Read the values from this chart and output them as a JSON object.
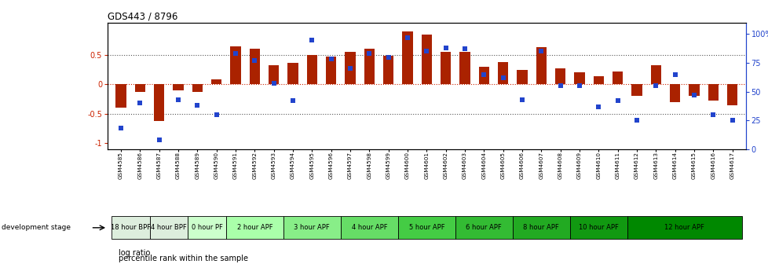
{
  "title": "GDS443 / 8796",
  "samples": [
    "GSM4585",
    "GSM4586",
    "GSM4587",
    "GSM4588",
    "GSM4589",
    "GSM4590",
    "GSM4591",
    "GSM4592",
    "GSM4593",
    "GSM4594",
    "GSM4595",
    "GSM4596",
    "GSM4597",
    "GSM4598",
    "GSM4599",
    "GSM4600",
    "GSM4601",
    "GSM4602",
    "GSM4603",
    "GSM4604",
    "GSM4605",
    "GSM4606",
    "GSM4607",
    "GSM4608",
    "GSM4609",
    "GSM4610",
    "GSM4611",
    "GSM4612",
    "GSM4613",
    "GSM4614",
    "GSM4615",
    "GSM4616",
    "GSM4617"
  ],
  "log_ratio": [
    -0.4,
    -0.13,
    -0.62,
    -0.1,
    -0.13,
    0.08,
    0.65,
    0.6,
    0.33,
    0.37,
    0.5,
    0.47,
    0.55,
    0.6,
    0.48,
    0.9,
    0.85,
    0.55,
    0.55,
    0.3,
    0.38,
    0.24,
    0.63,
    0.27,
    0.2,
    0.14,
    0.22,
    -0.2,
    0.33,
    -0.3,
    -0.2,
    -0.28,
    -0.35
  ],
  "percentile": [
    18,
    40,
    8,
    43,
    38,
    30,
    83,
    77,
    57,
    42,
    95,
    78,
    70,
    83,
    80,
    97,
    85,
    88,
    87,
    65,
    62,
    43,
    85,
    55,
    55,
    37,
    42,
    25,
    55,
    65,
    47,
    30,
    25
  ],
  "stages": [
    {
      "label": "18 hour BPF",
      "start": 0,
      "end": 2,
      "color": "#ddeedd"
    },
    {
      "label": "4 hour BPF",
      "start": 2,
      "end": 4,
      "color": "#ddeedd"
    },
    {
      "label": "0 hour PF",
      "start": 4,
      "end": 6,
      "color": "#ccffcc"
    },
    {
      "label": "2 hour APF",
      "start": 6,
      "end": 9,
      "color": "#aaffaa"
    },
    {
      "label": "3 hour APF",
      "start": 9,
      "end": 12,
      "color": "#88ee88"
    },
    {
      "label": "4 hour APF",
      "start": 12,
      "end": 15,
      "color": "#66dd66"
    },
    {
      "label": "5 hour APF",
      "start": 15,
      "end": 18,
      "color": "#44cc44"
    },
    {
      "label": "6 hour APF",
      "start": 18,
      "end": 21,
      "color": "#33bb33"
    },
    {
      "label": "8 hour APF",
      "start": 21,
      "end": 24,
      "color": "#22aa22"
    },
    {
      "label": "10 hour APF",
      "start": 24,
      "end": 27,
      "color": "#119911"
    },
    {
      "label": "12 hour APF",
      "start": 27,
      "end": 33,
      "color": "#008800"
    }
  ],
  "bar_color": "#aa2200",
  "dot_color": "#2244cc",
  "ylim_left": [
    -1.1,
    1.05
  ],
  "ylim_right": [
    0,
    110
  ],
  "yticks_left": [
    -1.0,
    -0.5,
    0.0,
    0.5
  ],
  "ytick_labels_left": [
    "-1",
    "-0.5",
    "0",
    "0.5"
  ],
  "yticks_right": [
    0,
    25,
    50,
    75,
    100
  ],
  "ytick_labels_right": [
    "0",
    "25",
    "50",
    "75",
    "100%"
  ],
  "hlines": [
    -0.5,
    0.0,
    0.5
  ],
  "background_color": "#ffffff"
}
